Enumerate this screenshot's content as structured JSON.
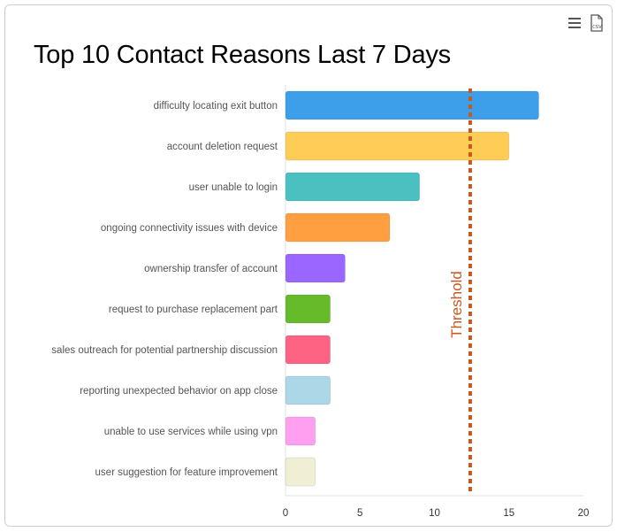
{
  "chart_data": {
    "type": "bar",
    "orientation": "horizontal",
    "title": "Top 10 Contact Reasons Last 7 Days",
    "categories": [
      "difficulty locating exit button",
      "account deletion request",
      "user unable to login",
      "ongoing connectivity issues with device",
      "ownership transfer of account",
      "request to purchase replacement part",
      "sales outreach for potential partnership discussion",
      "reporting unexpected behavior on app close",
      "unable to use services while using vpn",
      "user suggestion for feature improvement"
    ],
    "values": [
      17,
      15,
      9,
      7,
      4,
      3,
      3,
      3,
      2,
      2
    ],
    "colors": [
      "#3d9fea",
      "#ffcd56",
      "#4bc0c0",
      "#ff9f40",
      "#9966ff",
      "#66bb2a",
      "#ff6384",
      "#abd7e6",
      "#ff9ff0",
      "#f0efd6"
    ],
    "xlim": [
      0,
      20
    ],
    "xticks": [
      "0",
      "5",
      "10",
      "15",
      "20"
    ],
    "threshold": {
      "value": 12.4,
      "label": "Threshold",
      "color": "#c8581e"
    },
    "xlabel": "",
    "ylabel": ""
  },
  "toolbar": {
    "menu_icon": "hamburger-menu-icon",
    "csv_icon": "csv-download-icon",
    "csv_text": "CSV"
  }
}
